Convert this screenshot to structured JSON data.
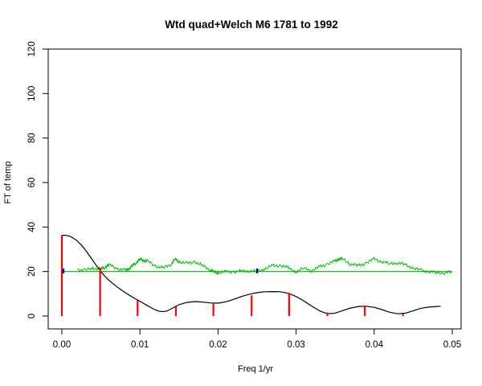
{
  "chart_data": {
    "type": "line",
    "title": "Wtd quad+Welch M6 1781 to 1992",
    "xlabel": "Freq 1/yr",
    "ylabel": "FT of temp",
    "xlim": [
      0,
      0.05
    ],
    "ylim": [
      0,
      120
    ],
    "x_ticks": [
      "0.00",
      "0.01",
      "0.02",
      "0.03",
      "0.04",
      "0.05"
    ],
    "y_ticks": [
      "0",
      "20",
      "40",
      "60",
      "80",
      "100",
      "120"
    ],
    "colors": {
      "smooth": "#000000",
      "spikes": "#ff0000",
      "noise": "#00bb00",
      "markers": "#0000cc"
    },
    "series": [
      {
        "kind": "smooth",
        "x": [
          0.0,
          0.0005,
          0.001,
          0.0015,
          0.002,
          0.0025,
          0.003,
          0.0035,
          0.004,
          0.0045,
          0.005,
          0.0055,
          0.006,
          0.0065,
          0.007,
          0.0075,
          0.008,
          0.0085,
          0.009,
          0.0095,
          0.01,
          0.0105,
          0.011,
          0.0115,
          0.012,
          0.0125,
          0.013,
          0.0135,
          0.014,
          0.0145,
          0.015,
          0.016,
          0.017,
          0.018,
          0.019,
          0.02,
          0.021,
          0.022,
          0.023,
          0.024,
          0.025,
          0.026,
          0.027,
          0.028,
          0.029,
          0.03,
          0.031,
          0.032,
          0.033,
          0.034,
          0.035,
          0.036,
          0.037,
          0.038,
          0.039,
          0.04,
          0.041,
          0.042,
          0.043,
          0.044,
          0.045,
          0.046,
          0.047,
          0.048,
          0.0485
        ],
        "y": [
          36.3,
          36.3,
          35.9,
          35.0,
          33.7,
          31.9,
          29.7,
          27.3,
          24.8,
          22.3,
          20.0,
          17.9,
          16.2,
          14.7,
          13.3,
          12.0,
          10.8,
          9.7,
          8.6,
          7.6,
          6.6,
          5.6,
          4.6,
          3.6,
          2.7,
          2.1,
          2.0,
          2.3,
          3.2,
          4.2,
          5.1,
          6.1,
          6.5,
          6.3,
          5.9,
          5.8,
          6.4,
          7.5,
          8.8,
          9.8,
          10.5,
          10.9,
          11.0,
          10.9,
          10.2,
          8.8,
          6.8,
          4.5,
          2.3,
          1.0,
          1.3,
          2.5,
          3.6,
          4.3,
          4.4,
          3.9,
          2.9,
          1.7,
          1.0,
          1.3,
          2.4,
          3.5,
          4.0,
          4.3,
          4.4
        ]
      },
      {
        "kind": "spikes",
        "x": [
          0.0,
          0.0049,
          0.0097,
          0.0146,
          0.0194,
          0.0243,
          0.0291,
          0.034,
          0.0388,
          0.0437
        ],
        "y": [
          36.3,
          21.8,
          7.1,
          4.4,
          5.8,
          9.3,
          10.4,
          1.6,
          4.4,
          1.0
        ]
      },
      {
        "kind": "noise",
        "x": [
          0.002,
          0.003,
          0.004,
          0.005,
          0.0055,
          0.006,
          0.007,
          0.008,
          0.0085,
          0.009,
          0.0095,
          0.01,
          0.0105,
          0.011,
          0.012,
          0.013,
          0.014,
          0.0145,
          0.015,
          0.016,
          0.017,
          0.018,
          0.019,
          0.0195,
          0.02,
          0.021,
          0.022,
          0.023,
          0.024,
          0.025,
          0.026,
          0.027,
          0.028,
          0.029,
          0.03,
          0.031,
          0.032,
          0.033,
          0.034,
          0.035,
          0.0355,
          0.036,
          0.037,
          0.038,
          0.039,
          0.04,
          0.041,
          0.042,
          0.043,
          0.044,
          0.045,
          0.046,
          0.047,
          0.048,
          0.049,
          0.05
        ],
        "y": [
          21.0,
          20.5,
          21.5,
          21.0,
          22.0,
          23.0,
          21.5,
          20.5,
          21.0,
          22.5,
          24.0,
          25.5,
          25.0,
          24.5,
          22.5,
          21.5,
          23.5,
          25.5,
          24.5,
          23.5,
          24.5,
          22.5,
          21.0,
          19.8,
          19.5,
          19.8,
          20.0,
          20.0,
          20.5,
          19.8,
          21.5,
          22.5,
          22.8,
          21.5,
          20.0,
          21.5,
          20.5,
          22.0,
          23.5,
          24.5,
          26.0,
          25.5,
          23.5,
          22.5,
          24.0,
          25.5,
          24.5,
          23.5,
          24.0,
          23.0,
          21.5,
          20.5,
          20.0,
          19.5,
          19.5,
          19.8
        ]
      },
      {
        "kind": "reference",
        "x": [
          0.0,
          0.05
        ],
        "y": [
          20.0,
          20.0
        ]
      },
      {
        "kind": "markers",
        "x": [
          0.0002,
          0.025
        ],
        "y": [
          20.3,
          20.3
        ]
      }
    ]
  }
}
